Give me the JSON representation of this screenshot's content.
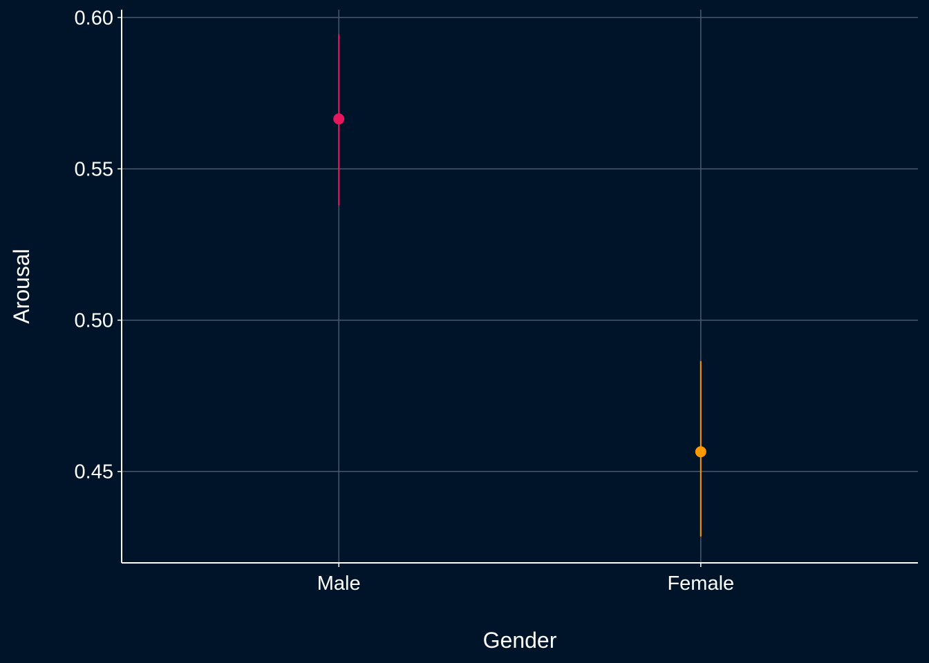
{
  "chart_data": {
    "type": "scatter",
    "title": "",
    "xlabel": "Gender",
    "ylabel": "Arousal",
    "categories": [
      "Male",
      "Female"
    ],
    "points": [
      {
        "category": "Male",
        "value": 0.5665,
        "lower": 0.538,
        "upper": 0.5945,
        "color": "#e8175d"
      },
      {
        "category": "Female",
        "value": 0.4565,
        "lower": 0.4285,
        "upper": 0.4865,
        "color": "#ff9900"
      }
    ],
    "yticks": [
      0.45,
      0.5,
      0.55,
      0.6
    ],
    "ytick_labels": [
      "0.45",
      "0.50",
      "0.55",
      "0.60"
    ],
    "ylim": [
      0.4198,
      0.6026
    ],
    "grid": true,
    "colors": {
      "background": "#001429",
      "grid": "#4a5a6e",
      "axis": "#ffffff",
      "text": "#ffffff"
    }
  }
}
